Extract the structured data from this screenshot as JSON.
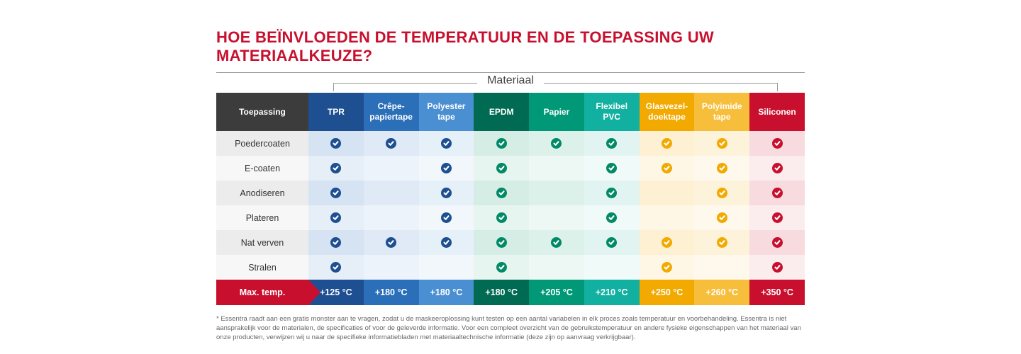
{
  "title": "HOE BEÏNVLOEDEN DE TEMPERATUUR EN DE TOEPASSING UW MATERIAALKEUZE?",
  "title_color": "#c8102e",
  "materiaal_label": "Materiaal",
  "app_head": "Toepassing",
  "app_head_bg": "#3c3c3c",
  "columns": [
    {
      "label": "TPR",
      "head_bg": "#1d4f91",
      "row_even": "#d6e3f3",
      "row_odd": "#e6eef8",
      "foot_bg": "#1d4f91",
      "tick": "#1d4f91"
    },
    {
      "label": "Crêpe-\npapiertape",
      "head_bg": "#2a6fb8",
      "row_even": "#dfeaf6",
      "row_odd": "#edf3fa",
      "foot_bg": "#2a6fb8",
      "tick": "#1d4f91"
    },
    {
      "label": "Polyester\ntape",
      "head_bg": "#4a8fd1",
      "row_even": "#e6f0f9",
      "row_odd": "#f2f7fc",
      "foot_bg": "#4a8fd1",
      "tick": "#1d4f91"
    },
    {
      "label": "EPDM",
      "head_bg": "#006a52",
      "row_even": "#d6ede5",
      "row_odd": "#e7f5f0",
      "foot_bg": "#006a52",
      "tick": "#008a66"
    },
    {
      "label": "Papier",
      "head_bg": "#009877",
      "row_even": "#ddf1eb",
      "row_odd": "#edf8f4",
      "foot_bg": "#009877",
      "tick": "#008a66"
    },
    {
      "label": "Flexibel\nPVC",
      "head_bg": "#12b0a0",
      "row_even": "#e2f4f1",
      "row_odd": "#f0faf8",
      "foot_bg": "#12b0a0",
      "tick": "#008a66"
    },
    {
      "label": "Glasvezel-\ndoektape",
      "head_bg": "#f2a900",
      "row_even": "#fdf0d3",
      "row_odd": "#fef7e6",
      "foot_bg": "#f2a900",
      "tick": "#f2a900"
    },
    {
      "label": "Polyimide\ntape",
      "head_bg": "#f6be3a",
      "row_even": "#fdf3da",
      "row_odd": "#fef9ec",
      "foot_bg": "#f6be3a",
      "tick": "#f2a900"
    },
    {
      "label": "Siliconen",
      "head_bg": "#c8102e",
      "row_even": "#f7dbde",
      "row_odd": "#fbecee",
      "foot_bg": "#c8102e",
      "tick": "#c8102e"
    }
  ],
  "rows": [
    {
      "label": "Poedercoaten",
      "bg": "#ececec",
      "checks": [
        1,
        1,
        1,
        1,
        1,
        1,
        1,
        1,
        1
      ]
    },
    {
      "label": "E-coaten",
      "bg": "#f7f7f7",
      "checks": [
        1,
        0,
        1,
        1,
        0,
        1,
        1,
        1,
        1
      ]
    },
    {
      "label": "Anodiseren",
      "bg": "#ececec",
      "checks": [
        1,
        0,
        1,
        1,
        0,
        1,
        0,
        1,
        1
      ]
    },
    {
      "label": "Plateren",
      "bg": "#f7f7f7",
      "checks": [
        1,
        0,
        1,
        1,
        0,
        1,
        0,
        1,
        1
      ]
    },
    {
      "label": "Nat verven",
      "bg": "#ececec",
      "checks": [
        1,
        1,
        1,
        1,
        1,
        1,
        1,
        1,
        1
      ]
    },
    {
      "label": "Stralen",
      "bg": "#f7f7f7",
      "checks": [
        1,
        0,
        0,
        1,
        0,
        0,
        1,
        0,
        1
      ]
    }
  ],
  "temp_label": "Max. temp.",
  "temp_label_bg": "#c8102e",
  "temps": [
    "+125 °C",
    "+180 °C",
    "+180 °C",
    "+180 °C",
    "+205 °C",
    "+210 °C",
    "+250 °C",
    "+260 °C",
    "+350 °C"
  ],
  "footnote": "* Essentra raadt aan een gratis monster aan te vragen, zodat u de maskeeroplossing kunt testen op een aantal variabelen in elk proces zoals temperatuur en voorbehandeling. Essentra is niet aansprakelijk voor de materialen, de specificaties of voor de geleverde informatie. Voor een compleet overzicht van de gebruikstemperatuur en andere fysieke eigenschappen van het materiaal van onze producten, verwijzen wij u naar de specifieke informatiebladen met materiaaltechnische informatie (deze zijn op aanvraag verkrijgbaar).",
  "line_color": "#999999"
}
